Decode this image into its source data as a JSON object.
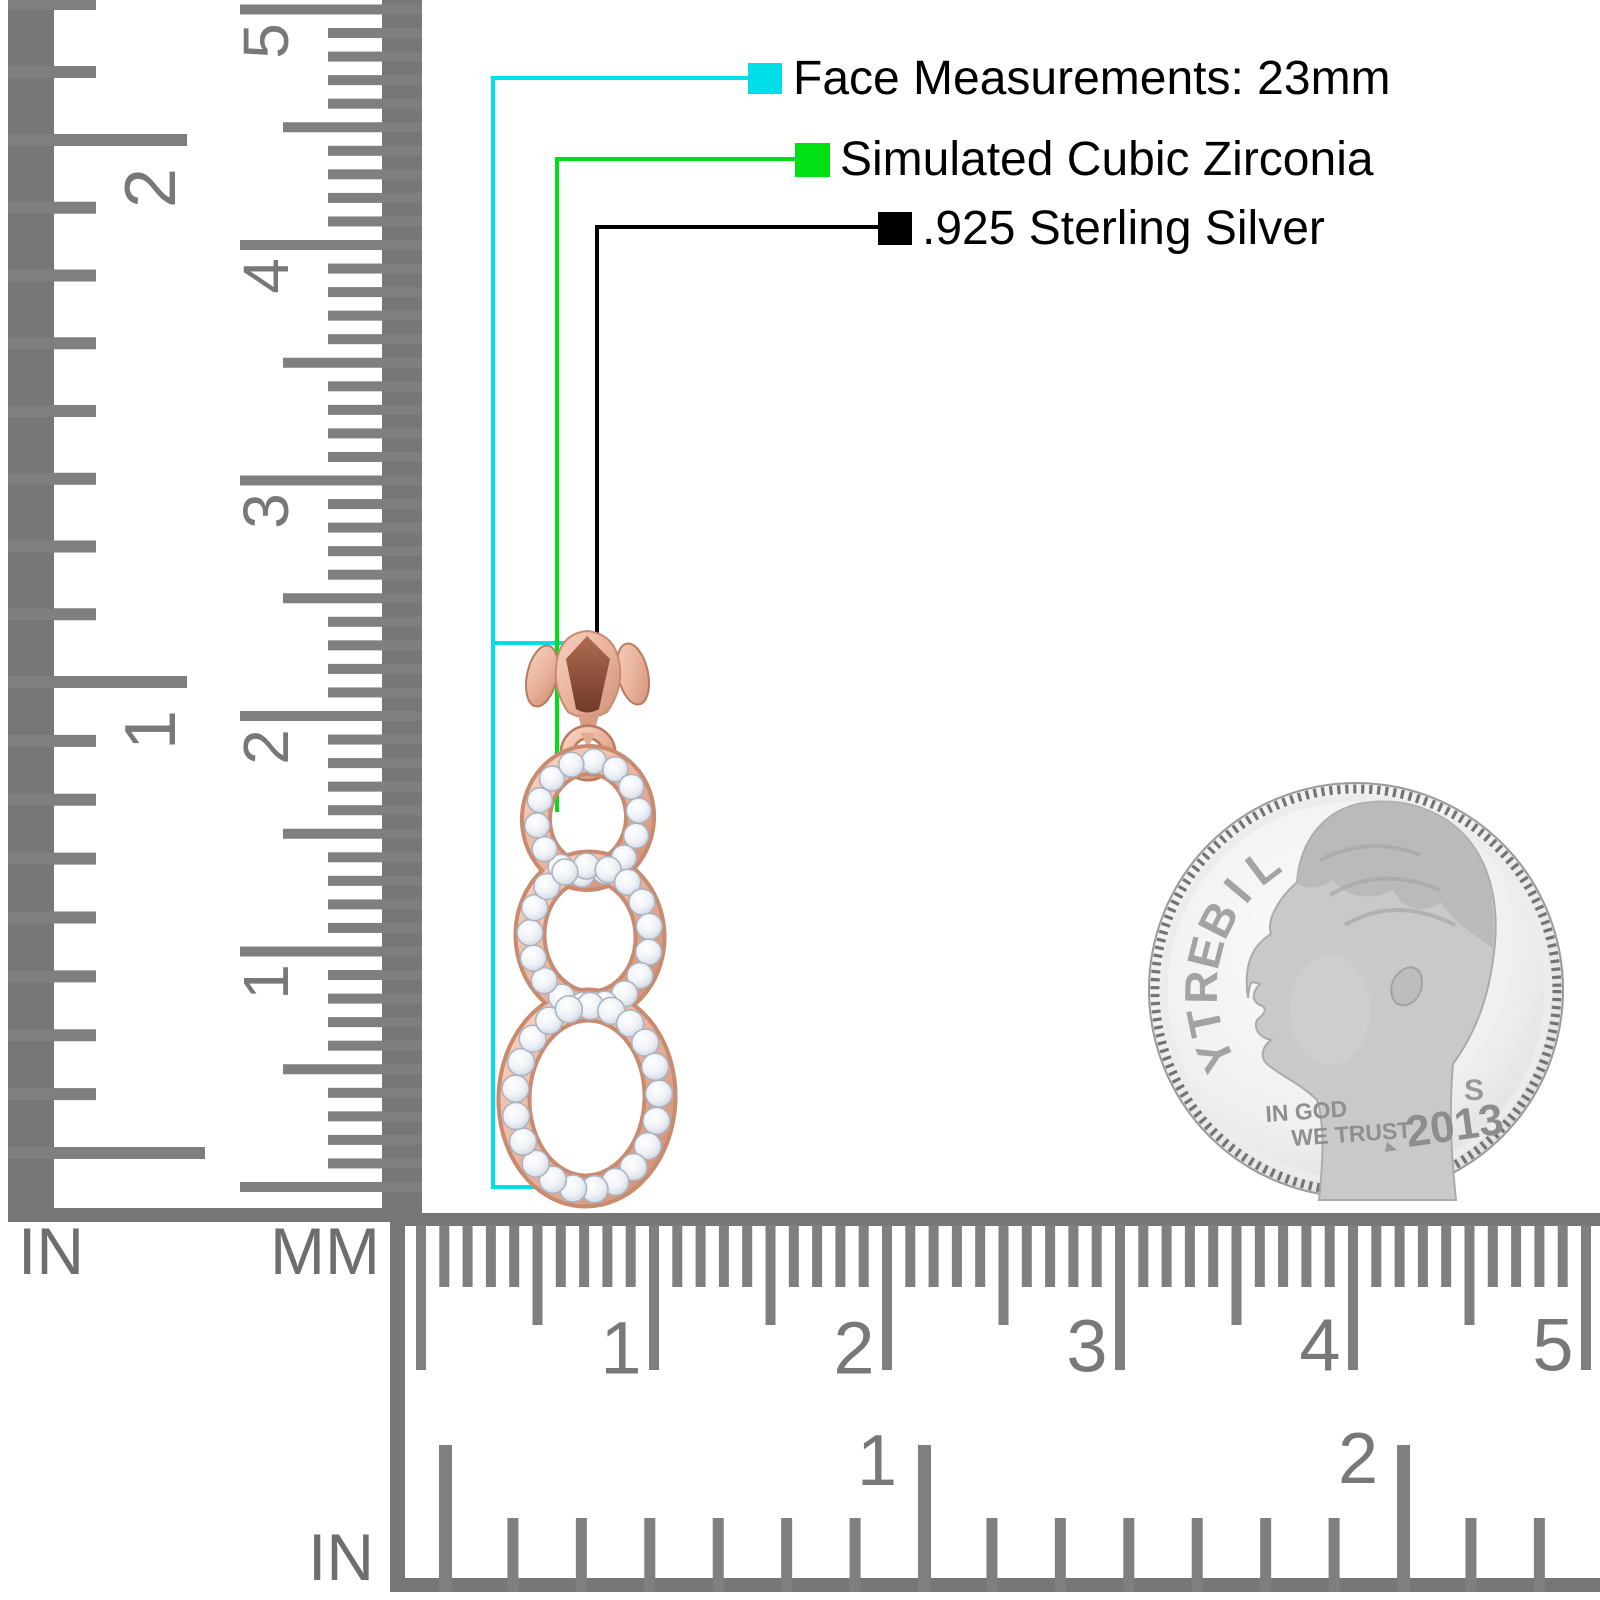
{
  "callouts": {
    "face": {
      "label": "Face Measurements: 23mm",
      "color": "#00dfe8"
    },
    "stones": {
      "label": "Simulated Cubic Zirconia",
      "color": "#00e113"
    },
    "metal": {
      "label": ".925 Sterling Silver",
      "color": "#000000"
    }
  },
  "rulers": {
    "left_in": {
      "unit": "IN",
      "labels": [
        "1",
        "2"
      ]
    },
    "left_mm": {
      "unit": "MM",
      "labels": [
        "1",
        "2",
        "3",
        "4",
        "5"
      ]
    },
    "bottom_mm": {
      "labels": [
        "1",
        "2",
        "3",
        "4",
        "5"
      ]
    },
    "bottom_in": {
      "unit": "IN",
      "labels": [
        "1",
        "2"
      ]
    }
  },
  "coin": {
    "liberty": "LIBERTY",
    "motto_line1": "IN GOD",
    "motto_line2": "WE TRUST",
    "mint_mark": "S",
    "year": "2013"
  },
  "colors": {
    "ruler_gray": "#7f7f7f",
    "rose_gold": "#e2a68c",
    "coin_silver": "#d9d9d9"
  }
}
